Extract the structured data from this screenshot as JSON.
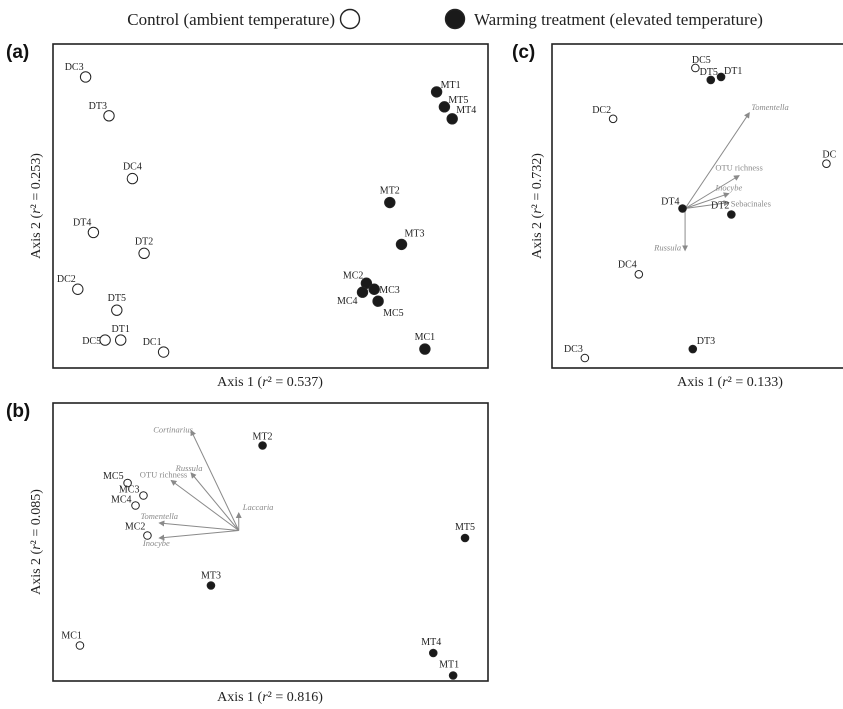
{
  "legend": {
    "control": "Control (ambient temperature)",
    "warming": "Warming treatment (elevated temperature)"
  },
  "colors": {
    "control": "#ffffff",
    "warming": "#1a1a1a",
    "outline": "#222222",
    "vector": "#8a8a8a"
  },
  "chart_data": [
    {
      "type": "scatter",
      "panel": "(a)",
      "xlabel": {
        "axis": "Axis 1",
        "r2": "0.537"
      },
      "ylabel": {
        "axis": "Axis 2",
        "r2": "0.253"
      },
      "points": [
        {
          "name": "DC3",
          "group": "control",
          "x": 0.04,
          "y": 0.95
        },
        {
          "name": "DT3",
          "group": "control",
          "x": 0.1,
          "y": 0.82
        },
        {
          "name": "DC4",
          "group": "control",
          "x": 0.16,
          "y": 0.61
        },
        {
          "name": "DT4",
          "group": "control",
          "x": 0.06,
          "y": 0.43
        },
        {
          "name": "DT2",
          "group": "control",
          "x": 0.19,
          "y": 0.36
        },
        {
          "name": "DC2",
          "group": "control",
          "x": 0.02,
          "y": 0.24
        },
        {
          "name": "DT5",
          "group": "control",
          "x": 0.12,
          "y": 0.17
        },
        {
          "name": "DT1",
          "group": "control",
          "x": 0.13,
          "y": 0.07
        },
        {
          "name": "DC5",
          "group": "control",
          "x": 0.09,
          "y": 0.07
        },
        {
          "name": "DC1",
          "group": "control",
          "x": 0.24,
          "y": 0.03
        },
        {
          "name": "MT1",
          "group": "warming",
          "x": 0.94,
          "y": 0.9
        },
        {
          "name": "MT5",
          "group": "warming",
          "x": 0.96,
          "y": 0.85
        },
        {
          "name": "MT4",
          "group": "warming",
          "x": 0.98,
          "y": 0.81
        },
        {
          "name": "MT2",
          "group": "warming",
          "x": 0.82,
          "y": 0.53
        },
        {
          "name": "MT3",
          "group": "warming",
          "x": 0.85,
          "y": 0.39
        },
        {
          "name": "MC2",
          "group": "warming",
          "x": 0.76,
          "y": 0.26
        },
        {
          "name": "MC3",
          "group": "warming",
          "x": 0.78,
          "y": 0.24
        },
        {
          "name": "MC4",
          "group": "warming",
          "x": 0.75,
          "y": 0.23
        },
        {
          "name": "MC5",
          "group": "warming",
          "x": 0.79,
          "y": 0.2
        },
        {
          "name": "MC1",
          "group": "warming",
          "x": 0.91,
          "y": 0.04
        }
      ]
    },
    {
      "type": "scatter",
      "panel": "(b)",
      "xlabel": {
        "axis": "Axis 1",
        "r2": "0.816"
      },
      "ylabel": {
        "axis": "Axis 2",
        "r2": "0.085"
      },
      "points": [
        {
          "name": "MT2",
          "group": "warming",
          "x": 0.48,
          "y": 0.93
        },
        {
          "name": "MC5",
          "group": "control",
          "x": 0.14,
          "y": 0.78
        },
        {
          "name": "MC3",
          "group": "control",
          "x": 0.18,
          "y": 0.73
        },
        {
          "name": "MC4",
          "group": "control",
          "x": 0.16,
          "y": 0.69
        },
        {
          "name": "MC2",
          "group": "control",
          "x": 0.19,
          "y": 0.57
        },
        {
          "name": "MT5",
          "group": "warming",
          "x": 0.99,
          "y": 0.56
        },
        {
          "name": "MT3",
          "group": "warming",
          "x": 0.35,
          "y": 0.37
        },
        {
          "name": "MC1",
          "group": "control",
          "x": 0.02,
          "y": 0.13
        },
        {
          "name": "MT4",
          "group": "warming",
          "x": 0.91,
          "y": 0.1
        },
        {
          "name": "MT1",
          "group": "warming",
          "x": 0.96,
          "y": 0.01
        }
      ],
      "vectors": {
        "origin": {
          "x": 0.42,
          "y": 0.59
        },
        "items": [
          {
            "name": "Cortinarius",
            "italic": true,
            "x": 0.3,
            "y": 0.99
          },
          {
            "name": "Russula",
            "italic": true,
            "x": 0.3,
            "y": 0.82
          },
          {
            "name": "OTU richness",
            "italic": false,
            "x": 0.25,
            "y": 0.79
          },
          {
            "name": "Laccaria",
            "italic": true,
            "x": 0.42,
            "y": 0.66
          },
          {
            "name": "Tomentella",
            "italic": true,
            "x": 0.22,
            "y": 0.62
          },
          {
            "name": "Inocybe",
            "italic": true,
            "x": 0.22,
            "y": 0.56
          }
        ]
      }
    },
    {
      "type": "scatter",
      "panel": "(c)",
      "xlabel": {
        "axis": "Axis 1",
        "r2": "0.133"
      },
      "ylabel": {
        "axis": "Axis 2",
        "r2": "0.732"
      },
      "points": [
        {
          "name": "DC5",
          "group": "control",
          "x": 0.48,
          "y": 0.98
        },
        {
          "name": "DT5",
          "group": "warming",
          "x": 0.54,
          "y": 0.94
        },
        {
          "name": "DT1",
          "group": "warming",
          "x": 0.58,
          "y": 0.95
        },
        {
          "name": "DC2",
          "group": "control",
          "x": 0.16,
          "y": 0.81
        },
        {
          "name": "DC",
          "group": "control",
          "x": 0.99,
          "y": 0.66
        },
        {
          "name": "DT4",
          "group": "warming",
          "x": 0.43,
          "y": 0.51
        },
        {
          "name": "DT2",
          "group": "warming",
          "x": 0.62,
          "y": 0.49
        },
        {
          "name": "DC4",
          "group": "control",
          "x": 0.26,
          "y": 0.29
        },
        {
          "name": "DT3",
          "group": "warming",
          "x": 0.47,
          "y": 0.04
        },
        {
          "name": "DC3",
          "group": "control",
          "x": 0.05,
          "y": 0.01
        }
      ],
      "vectors": {
        "origin": {
          "x": 0.44,
          "y": 0.51
        },
        "items": [
          {
            "name": "Tomentella",
            "italic": true,
            "x": 0.69,
            "y": 0.83
          },
          {
            "name": "OTU richness",
            "italic": false,
            "x": 0.65,
            "y": 0.62
          },
          {
            "name": "Inocybe",
            "italic": true,
            "x": 0.61,
            "y": 0.56
          },
          {
            "name": "Sebacinales",
            "italic": false,
            "x": 0.61,
            "y": 0.53
          },
          {
            "name": "Russula",
            "italic": true,
            "x": 0.44,
            "y": 0.37
          }
        ]
      }
    }
  ]
}
